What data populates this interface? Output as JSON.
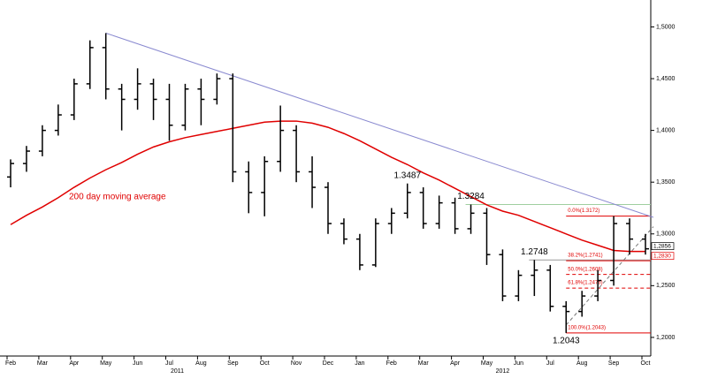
{
  "chart_data": {
    "type": "ohlc",
    "categories": [
      "Feb",
      null,
      "Mar",
      null,
      "Apr",
      null,
      "May",
      null,
      "Jun",
      null,
      "Jul",
      null,
      "Aug",
      null,
      "Sep",
      null,
      "Oct",
      null,
      "Nov",
      null,
      "Dec",
      null,
      "Jan",
      null,
      "Feb",
      null,
      "Mar",
      null,
      "Apr",
      null,
      "May",
      null,
      "Jun",
      null,
      "Jul",
      null,
      "Aug",
      null,
      "Sep",
      null,
      "Oct"
    ],
    "years": [
      "2011",
      "2012"
    ],
    "open": [
      1.355,
      1.368,
      1.38,
      1.4,
      1.415,
      1.445,
      1.48,
      1.44,
      1.43,
      1.445,
      1.43,
      1.405,
      1.44,
      1.43,
      1.45,
      1.36,
      1.34,
      1.37,
      1.4,
      1.36,
      1.345,
      1.31,
      1.295,
      1.27,
      1.31,
      1.32,
      1.34,
      1.31,
      1.33,
      1.305,
      1.32,
      1.28,
      1.24,
      1.26,
      1.265,
      1.23,
      1.225,
      1.24,
      1.255,
      1.31,
      1.295
    ],
    "high": [
      1.372,
      1.385,
      1.405,
      1.425,
      1.45,
      1.487,
      1.494,
      1.445,
      1.46,
      1.45,
      1.445,
      1.445,
      1.45,
      1.455,
      1.455,
      1.37,
      1.375,
      1.424,
      1.405,
      1.375,
      1.35,
      1.315,
      1.3,
      1.315,
      1.325,
      1.3487,
      1.345,
      1.337,
      1.335,
      1.3284,
      1.325,
      1.285,
      1.265,
      1.2748,
      1.27,
      1.235,
      1.245,
      1.265,
      1.3172,
      1.315,
      1.3
    ],
    "low": [
      1.345,
      1.36,
      1.375,
      1.395,
      1.41,
      1.44,
      1.43,
      1.4,
      1.42,
      1.41,
      1.39,
      1.4,
      1.405,
      1.425,
      1.35,
      1.32,
      1.317,
      1.36,
      1.35,
      1.325,
      1.3,
      1.29,
      1.265,
      1.268,
      1.3,
      1.315,
      1.305,
      1.305,
      1.3,
      1.3,
      1.27,
      1.235,
      1.235,
      1.24,
      1.225,
      1.2043,
      1.22,
      1.235,
      1.25,
      1.28,
      1.28
    ],
    "close": [
      1.368,
      1.38,
      1.4,
      1.415,
      1.445,
      1.48,
      1.44,
      1.43,
      1.445,
      1.43,
      1.405,
      1.44,
      1.43,
      1.45,
      1.36,
      1.34,
      1.37,
      1.4,
      1.36,
      1.345,
      1.31,
      1.295,
      1.27,
      1.31,
      1.32,
      1.34,
      1.31,
      1.33,
      1.305,
      1.32,
      1.28,
      1.24,
      1.26,
      1.265,
      1.23,
      1.225,
      1.24,
      1.255,
      1.31,
      1.295,
      1.2856
    ],
    "color": "#000000",
    "moving_average": {
      "name": "200 day moving average",
      "color": "#e00000",
      "values": [
        1.309,
        1.318,
        1.326,
        1.335,
        1.345,
        1.354,
        1.362,
        1.369,
        1.377,
        1.384,
        1.389,
        1.393,
        1.396,
        1.399,
        1.402,
        1.405,
        1.408,
        1.409,
        1.409,
        1.407,
        1.403,
        1.397,
        1.39,
        1.382,
        1.374,
        1.367,
        1.359,
        1.352,
        1.344,
        1.336,
        1.328,
        1.322,
        1.318,
        1.312,
        1.306,
        1.3,
        1.294,
        1.289,
        1.284,
        1.283,
        1.283
      ]
    },
    "trendline": {
      "color": "#8a8ad0",
      "x": [
        6,
        40.5
      ],
      "values": [
        1.494,
        1.316
      ]
    },
    "channel": {
      "color": "#777777",
      "x": [
        35,
        40.5
      ],
      "values": [
        1.212,
        1.307
      ]
    },
    "peak_labels": [
      {
        "x": 25,
        "value": 1.3487
      },
      {
        "x": 29,
        "value": 1.3284
      },
      {
        "x": 33,
        "value": 1.2748
      },
      {
        "x": 35,
        "value": 1.2043
      }
    ],
    "resistance": {
      "value": 1.3284,
      "color": "#9fcf9f"
    },
    "support": {
      "value": 1.2748,
      "color": "#999999"
    },
    "fib_color": "#e00000",
    "fib_levels": [
      {
        "value": 1.3172,
        "label": "0.0%(1.3172)"
      },
      {
        "value": 1.2741,
        "label": "38.2%(1.2741)"
      },
      {
        "value": 1.2608,
        "label": "50.0%(1.2608)"
      },
      {
        "value": 1.2476,
        "label": "61.8%(1.2476)"
      },
      {
        "value": 1.2043,
        "label": "100.0%(1.2043)"
      }
    ],
    "last_tags": [
      {
        "value": 1.2856,
        "label": "1,2856",
        "color": "#000000"
      },
      {
        "value": 1.283,
        "label": "1,2830",
        "color": "#e00000"
      }
    ],
    "ylim": [
      1.182,
      1.526
    ],
    "yticks": [
      {
        "value": 1.2,
        "label": "1,2000"
      },
      {
        "value": 1.25,
        "label": "1,2500"
      },
      {
        "value": 1.3,
        "label": "1,3000"
      },
      {
        "value": 1.35,
        "label": "1,3500"
      },
      {
        "value": 1.4,
        "label": "1,4000"
      },
      {
        "value": 1.45,
        "label": "1,4500"
      },
      {
        "value": 1.5,
        "label": "1,5000"
      }
    ]
  }
}
